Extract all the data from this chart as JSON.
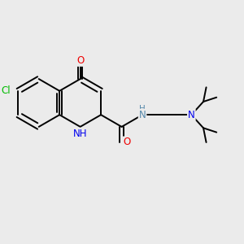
{
  "background_color": "#ebebeb",
  "bond_color": "#000000",
  "atom_colors": {
    "Cl": "#00bb00",
    "N_blue": "#0000ee",
    "O": "#ee0000",
    "NH_gray": "#5588aa",
    "C": "#000000"
  },
  "figsize": [
    3.0,
    3.0
  ],
  "dpi": 100,
  "xlim": [
    0,
    10
  ],
  "ylim": [
    0,
    10
  ],
  "bond_lw": 1.4,
  "font_size": 8.5
}
